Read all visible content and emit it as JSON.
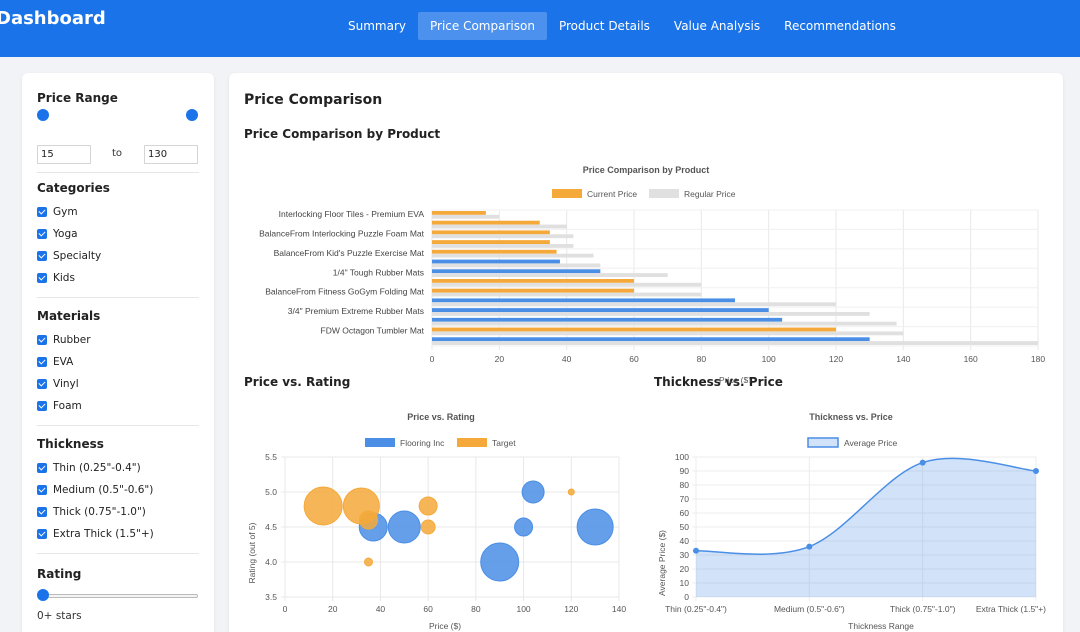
{
  "header": {
    "brand": "Dashboard",
    "tabs": [
      {
        "label": "Summary",
        "active": false
      },
      {
        "label": "Price Comparison",
        "active": true
      },
      {
        "label": "Product Details",
        "active": false
      },
      {
        "label": "Value Analysis",
        "active": false
      },
      {
        "label": "Recommendations",
        "active": false
      }
    ]
  },
  "sidebar": {
    "price_range": {
      "title": "Price Range",
      "min": "15",
      "max": "130",
      "to_label": "to"
    },
    "categories": {
      "title": "Categories",
      "items": [
        "Gym",
        "Yoga",
        "Specialty",
        "Kids"
      ]
    },
    "materials": {
      "title": "Materials",
      "items": [
        "Rubber",
        "EVA",
        "Vinyl",
        "Foam"
      ]
    },
    "thickness": {
      "title": "Thickness",
      "items": [
        "Thin (0.25\"-0.4\")",
        "Medium (0.5\"-0.6\")",
        "Thick (0.75\"-1.0\")",
        "Extra Thick (1.5\"+)"
      ]
    },
    "rating": {
      "title": "Rating",
      "value": 0,
      "label": "0+ stars"
    }
  },
  "main": {
    "title": "Price Comparison",
    "section1": "Price Comparison by Product",
    "section2": "Price vs. Rating",
    "section3": "Thickness vs. Price"
  },
  "colors": {
    "blue": "#4a8ee6",
    "orange": "#f5a93a",
    "gray": "#e0e0e0"
  },
  "chart_data": [
    {
      "type": "bar",
      "orientation": "horizontal",
      "title": "Price Comparison by Product",
      "xlabel": "Price ($)",
      "xlim": [
        0,
        180
      ],
      "xticks": [
        0,
        20,
        40,
        60,
        80,
        100,
        120,
        140,
        160,
        180
      ],
      "legend": [
        {
          "name": "Current Price",
          "color": "#f5a93a"
        },
        {
          "name": "Regular Price",
          "color": "#e0e0e0"
        }
      ],
      "visible_labels": [
        "Interlocking Floor Tiles - Premium EVA",
        "BalanceFrom Interlocking Puzzle Foam Mat",
        "BalanceFrom Kid's Puzzle Exercise Mat",
        "1/4\" Tough Rubber Mats",
        "BalanceFrom Fitness GoGym Folding Mat",
        "3/4\" Premium Extreme Rubber Mats",
        "FDW Octagon Tumbler Mat"
      ],
      "rows": [
        {
          "current": 16,
          "regular": 20,
          "color": "orange"
        },
        {
          "current": 32,
          "regular": 40,
          "color": "orange"
        },
        {
          "current": 35,
          "regular": 42,
          "color": "orange"
        },
        {
          "current": 35,
          "regular": 42,
          "color": "orange"
        },
        {
          "current": 37,
          "regular": 48,
          "color": "orange"
        },
        {
          "current": 38,
          "regular": 50,
          "color": "blue"
        },
        {
          "current": 50,
          "regular": 70,
          "color": "blue"
        },
        {
          "current": 60,
          "regular": 80,
          "color": "orange"
        },
        {
          "current": 60,
          "regular": 80,
          "color": "orange"
        },
        {
          "current": 90,
          "regular": 120,
          "color": "blue"
        },
        {
          "current": 100,
          "regular": 130,
          "color": "blue"
        },
        {
          "current": 104,
          "regular": 138,
          "color": "blue"
        },
        {
          "current": 120,
          "regular": 140,
          "color": "orange"
        },
        {
          "current": 130,
          "regular": 180,
          "color": "blue"
        }
      ]
    },
    {
      "type": "scatter",
      "title": "Price vs. Rating",
      "xlabel": "Price ($)",
      "ylabel": "Rating (out of 5)",
      "xlim": [
        0,
        140
      ],
      "ylim": [
        3.5,
        5.5
      ],
      "xticks": [
        0,
        20,
        40,
        60,
        80,
        100,
        120,
        140
      ],
      "yticks": [
        3.5,
        4.0,
        4.5,
        5.0,
        5.5
      ],
      "series": [
        {
          "name": "Flooring Inc",
          "color": "#4a8ee6",
          "points": [
            [
              37,
              4.5,
              14
            ],
            [
              50,
              4.5,
              16
            ],
            [
              90,
              4.0,
              19
            ],
            [
              100,
              4.5,
              9
            ],
            [
              104,
              5.0,
              11
            ],
            [
              130,
              4.5,
              18
            ]
          ]
        },
        {
          "name": "Target",
          "color": "#f5a93a",
          "points": [
            [
              16,
              4.8,
              19
            ],
            [
              32,
              4.8,
              18
            ],
            [
              35,
              4.6,
              9
            ],
            [
              60,
              4.8,
              9
            ],
            [
              60,
              4.5,
              7
            ],
            [
              35,
              4.0,
              4
            ],
            [
              120,
              5.0,
              3
            ]
          ]
        }
      ]
    },
    {
      "type": "area",
      "title": "Thickness vs. Price",
      "xlabel": "Thickness Range",
      "ylabel": "Average Price ($)",
      "categories": [
        "Thin (0.25\"-0.4\")",
        "Medium (0.5\"-0.6\")",
        "Thick (0.75\"-1.0\")",
        "Extra Thick (1.5\"+)"
      ],
      "ylim": [
        0,
        100
      ],
      "yticks": [
        0,
        10,
        20,
        30,
        40,
        50,
        60,
        70,
        80,
        90,
        100
      ],
      "series": [
        {
          "name": "Average Price",
          "values": [
            33,
            36,
            96,
            90
          ]
        }
      ]
    }
  ]
}
